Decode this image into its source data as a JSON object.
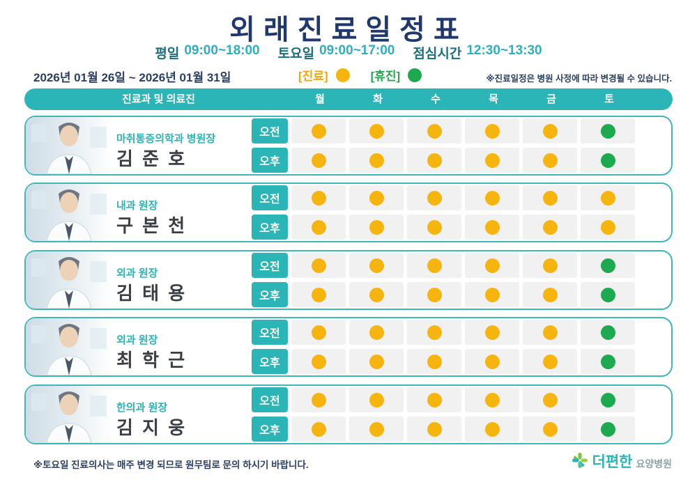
{
  "title": "외래진료일정표",
  "hours": [
    {
      "label": "평일",
      "value": "09:00~18:00"
    },
    {
      "label": "토요일",
      "value": "09:00~17:00"
    },
    {
      "label": "점심시간",
      "value": "12:30~13:30"
    }
  ],
  "date_range": "2026년 01월 26일 ~ 2026년 01월 31일",
  "legend": [
    {
      "label": "[진료]",
      "status": "진료"
    },
    {
      "label": "[휴진]",
      "status": "휴진"
    }
  ],
  "notice": "※진료일정은 병원 사정에 따라 변경될 수 있습니다.",
  "table": {
    "staff_header": "진료과 및 의료진",
    "days": [
      "월",
      "화",
      "수",
      "목",
      "금",
      "토"
    ],
    "session_am": "오전",
    "session_pm": "오후",
    "rows": [
      {
        "dept": "마취통증의학과 병원장",
        "name": "김 준 호",
        "am": [
          "진료",
          "진료",
          "진료",
          "진료",
          "진료",
          "휴진"
        ],
        "pm": [
          "진료",
          "진료",
          "진료",
          "진료",
          "진료",
          "휴진"
        ]
      },
      {
        "dept": "내과 원장",
        "name": "구 본 천",
        "am": [
          "진료",
          "진료",
          "진료",
          "진료",
          "진료",
          "진료"
        ],
        "pm": [
          "진료",
          "진료",
          "진료",
          "진료",
          "진료",
          "진료"
        ]
      },
      {
        "dept": "외과 원장",
        "name": "김 태 용",
        "am": [
          "진료",
          "진료",
          "진료",
          "진료",
          "진료",
          "휴진"
        ],
        "pm": [
          "진료",
          "진료",
          "진료",
          "진료",
          "진료",
          "휴진"
        ]
      },
      {
        "dept": "외과 원장",
        "name": "최 학 근",
        "am": [
          "진료",
          "진료",
          "진료",
          "진료",
          "진료",
          "휴진"
        ],
        "pm": [
          "진료",
          "진료",
          "진료",
          "진료",
          "진료",
          "휴진"
        ]
      },
      {
        "dept": "한의과 원장",
        "name": "김 지 웅",
        "am": [
          "진료",
          "진료",
          "진료",
          "진료",
          "진료",
          "휴진"
        ],
        "pm": [
          "진료",
          "진료",
          "진료",
          "진료",
          "진료",
          "휴진"
        ]
      }
    ]
  },
  "footer": {
    "note": "※토요일 진료의사는 매주 변경 되므로 원무팀로 문의 하시기 바랍니다.",
    "logo_main": "더편한",
    "logo_sub": "요양병원"
  },
  "colors": {
    "status": {
      "진료": "#F6B40F",
      "휴진": "#1DA94F"
    },
    "legend_text": {
      "진료": "#F7A600",
      "휴진": "#1FA94C"
    },
    "teal": "#2BB5B6",
    "navy": "#20386B"
  }
}
